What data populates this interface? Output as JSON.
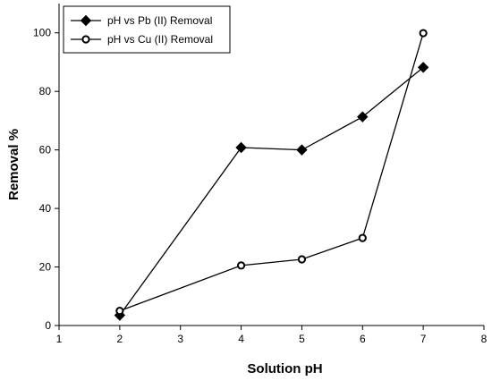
{
  "chart_data": {
    "type": "line",
    "title": "",
    "xlabel": "Solution pH",
    "ylabel": "Removal %",
    "xlim": [
      1,
      8
    ],
    "ylim": [
      0,
      110
    ],
    "xticks": [
      1,
      2,
      3,
      4,
      5,
      6,
      7,
      8
    ],
    "yticks": [
      0,
      20,
      40,
      60,
      80,
      100
    ],
    "grid": false,
    "legend_position": "top-left",
    "series": [
      {
        "name": "pH vs Pb (II) Removal",
        "marker": "diamond-filled",
        "color": "#000000",
        "x": [
          2,
          4,
          5,
          6,
          7
        ],
        "y": [
          3.5,
          60.8,
          60.0,
          71.3,
          88.2
        ]
      },
      {
        "name": "pH vs Cu (II) Removal",
        "marker": "circle-open",
        "color": "#000000",
        "x": [
          2,
          4,
          5,
          6,
          7
        ],
        "y": [
          5.0,
          20.5,
          22.6,
          29.9,
          99.9
        ]
      }
    ]
  }
}
